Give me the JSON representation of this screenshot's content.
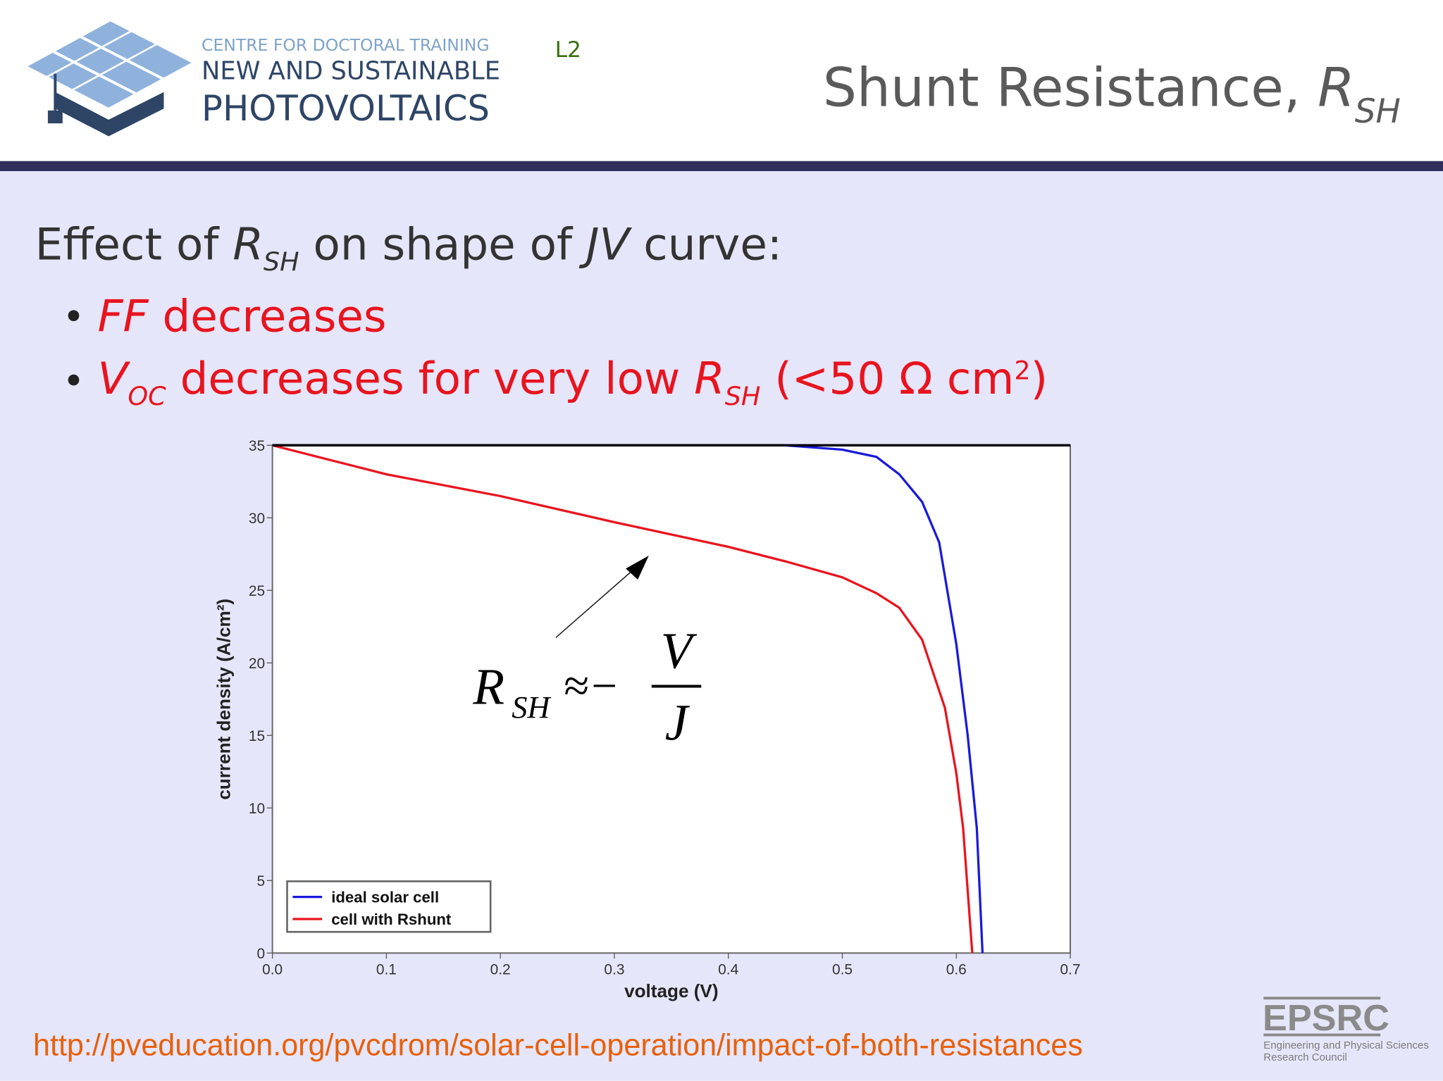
{
  "header": {
    "org_line1": "CENTRE FOR DOCTORAL TRAINING",
    "org_line2": "NEW AND SUSTAINABLE",
    "org_line3": "PHOTOVOLTAICS",
    "lecture": "L2",
    "title": "Shunt Resistance, ",
    "title_symbol": "R",
    "title_subscript": "SH"
  },
  "body": {
    "heading": {
      "parts": [
        "Effect of ",
        "R",
        "SH",
        " on shape of ",
        "JV",
        " curve:"
      ]
    },
    "bullets": [
      {
        "parts": [
          "FF",
          " decreases"
        ]
      },
      {
        "parts": [
          "V",
          "OC",
          " decreases for very low ",
          "R",
          "SH",
          " (<50 Ω cm",
          "2",
          ")"
        ]
      }
    ]
  },
  "chart_data": {
    "type": "line",
    "xlabel": "voltage (V)",
    "ylabel": "current density (A/cm²)",
    "xlim": [
      0,
      0.7
    ],
    "ylim": [
      0,
      35
    ],
    "xticks": [
      {
        "value": 0,
        "label": "0.0"
      },
      0.1,
      0.2,
      0.3,
      0.4,
      0.5,
      0.6,
      0.7
    ],
    "yticks": [
      0,
      5,
      10,
      15,
      20,
      25,
      30,
      35
    ],
    "legend": "lower left",
    "series": [
      {
        "name": "ideal solar cell",
        "color": "#1a1adb",
        "x": [
          0,
          0.1,
          0.2,
          0.3,
          0.4,
          0.45,
          0.5,
          0.53,
          0.55,
          0.57,
          0.585,
          0.6,
          0.61,
          0.618,
          0.623
        ],
        "values": [
          35,
          35,
          35,
          35,
          35,
          35,
          34.7,
          34.2,
          33.0,
          31.1,
          28.3,
          21.3,
          15.0,
          8.6,
          0
        ]
      },
      {
        "name": "cell with Rshunt",
        "color": "#e8141e",
        "x": [
          0,
          0.05,
          0.1,
          0.2,
          0.3,
          0.4,
          0.45,
          0.5,
          0.53,
          0.55,
          0.57,
          0.59,
          0.6,
          0.606,
          0.614
        ],
        "values": [
          35,
          34.0,
          33.0,
          31.5,
          29.7,
          28.0,
          27.0,
          25.9,
          24.8,
          23.8,
          21.6,
          16.9,
          12.4,
          8.6,
          0
        ]
      }
    ],
    "annotation": {
      "symbol": "R",
      "subscript": "SH",
      "relation": "≈−",
      "numerator": "V",
      "denominator": "J"
    }
  },
  "footer": {
    "source": "http://pveducation.org/pvcdrom/solar-cell-operation/impact-of-both-resistances",
    "funder": "EPSRC",
    "funder_line1": "Engineering and Physical Sciences",
    "funder_line2": "Research Council"
  }
}
